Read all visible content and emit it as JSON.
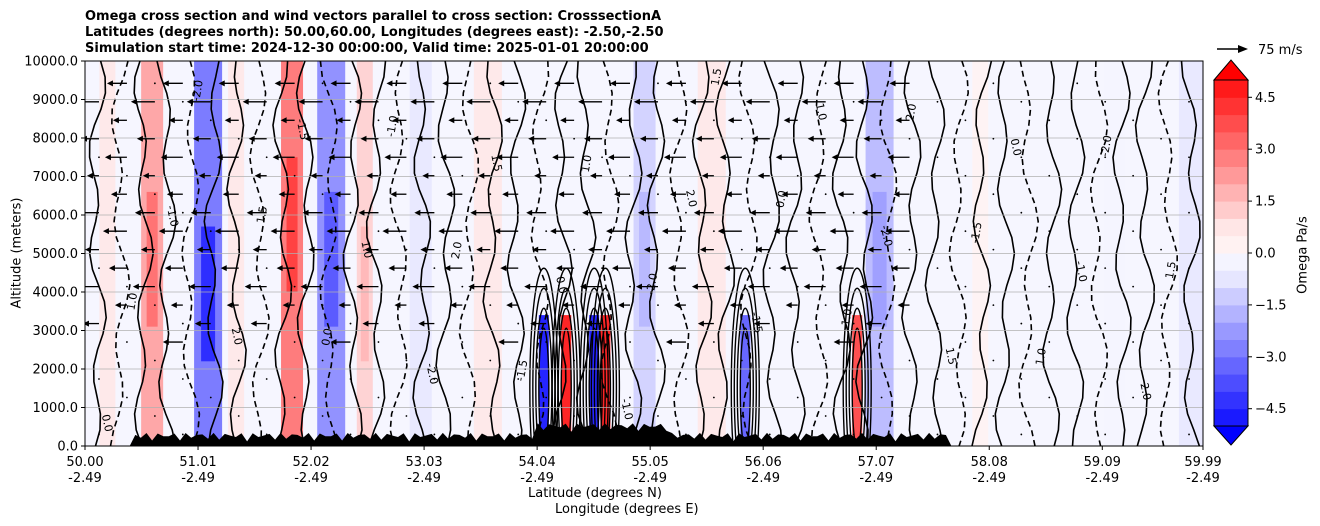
{
  "chart_data": {
    "type": "contour",
    "title_lines": [
      "Omega cross section and wind vectors parallel to cross section: CrosssectionA",
      "Latitudes (degrees north): 50.00,60.00, Longitudes (degrees east): -2.50,-2.50",
      "Simulation start time: 2024-12-30 00:00:00, Valid time: 2025-01-01 20:00:00"
    ],
    "ylabel": "Altitude (meters)",
    "xlabel_lat": "Latitude (degrees N)",
    "xlabel_lon": "Longitude (degrees E)",
    "ylim": [
      0,
      10000
    ],
    "y_ticks": [
      "10000.0",
      "9000.0",
      "8000.0",
      "7000.0",
      "6000.0",
      "5000.0",
      "4000.0",
      "3000.0",
      "2000.0",
      "1000.0",
      "0.0"
    ],
    "y_tick_values": [
      10000,
      9000,
      8000,
      7000,
      6000,
      5000,
      4000,
      3000,
      2000,
      1000,
      0
    ],
    "x_lat_ticks": [
      "50.00",
      "51.01",
      "52.02",
      "53.03",
      "54.04",
      "55.05",
      "56.06",
      "57.07",
      "58.08",
      "59.09",
      "59.99"
    ],
    "x_lon_ticks": [
      "-2.49",
      "-2.49",
      "-2.49",
      "-2.49",
      "-2.49",
      "-2.49",
      "-2.49",
      "-2.49",
      "-2.49",
      "-2.49",
      "-2.49"
    ],
    "x_tick_values": [
      50.0,
      51.01,
      52.02,
      53.03,
      54.04,
      55.05,
      56.06,
      57.07,
      58.08,
      59.09,
      59.99
    ],
    "xlim": [
      50.0,
      59.99
    ],
    "colorbar": {
      "label": "Omega Pa/s",
      "ticks": [
        "4.5",
        "3.0",
        "1.5",
        "0.0",
        "−1.5",
        "−3.0",
        "−4.5"
      ],
      "tick_values": [
        4.5,
        3.0,
        1.5,
        0.0,
        -1.5,
        -3.0,
        -4.5
      ],
      "range": [
        -5.0,
        5.0
      ],
      "extend": "both",
      "colors": [
        "#0000ff",
        "#1a1aff",
        "#3333ff",
        "#4d4dff",
        "#6666ff",
        "#8080ff",
        "#9999ff",
        "#b3b3ff",
        "#ccccff",
        "#e6e6ff",
        "#f4f4ff",
        "#fff2f2",
        "#ffe6e6",
        "#ffcccc",
        "#ffb3b3",
        "#ff9999",
        "#ff8080",
        "#ff6666",
        "#ff4d4d",
        "#ff3333",
        "#ff1a1a",
        "#ff0000"
      ]
    },
    "quiver_key": {
      "label": "75 m/s",
      "value": 75
    },
    "omega_bands": [
      {
        "lat": 50.2,
        "value": 0.6
      },
      {
        "lat": 50.6,
        "value": 2.2
      },
      {
        "lat": 51.1,
        "value": -3.4
      },
      {
        "lat": 51.35,
        "value": 0.8
      },
      {
        "lat": 51.85,
        "value": 3.2
      },
      {
        "lat": 52.2,
        "value": -2.6
      },
      {
        "lat": 52.5,
        "value": 1.4
      },
      {
        "lat": 53.0,
        "value": -0.8
      },
      {
        "lat": 53.6,
        "value": 0.9
      },
      {
        "lat": 54.1,
        "value": -5.5
      },
      {
        "lat": 54.3,
        "value": 5.5
      },
      {
        "lat": 54.55,
        "value": -5.5
      },
      {
        "lat": 54.65,
        "value": 5.5
      },
      {
        "lat": 55.0,
        "value": -1.2
      },
      {
        "lat": 55.6,
        "value": 0.9
      },
      {
        "lat": 55.9,
        "value": -4.0
      },
      {
        "lat": 56.9,
        "value": 4.2
      },
      {
        "lat": 57.1,
        "value": -1.6
      },
      {
        "lat": 58.0,
        "value": 0.4
      },
      {
        "lat": 59.2,
        "value": -0.3
      },
      {
        "lat": 59.9,
        "value": -1.0
      }
    ],
    "contour_labels": [
      "0.0",
      "1.0",
      "-1.0",
      "-2.0",
      "2.0",
      "1.5",
      "-1.5"
    ],
    "wind_vector_zone_lat": [
      50.0,
      57.5
    ]
  },
  "colors": {
    "contour": "#000000",
    "grid": "#b0b0b0",
    "terrain": "#000000"
  }
}
